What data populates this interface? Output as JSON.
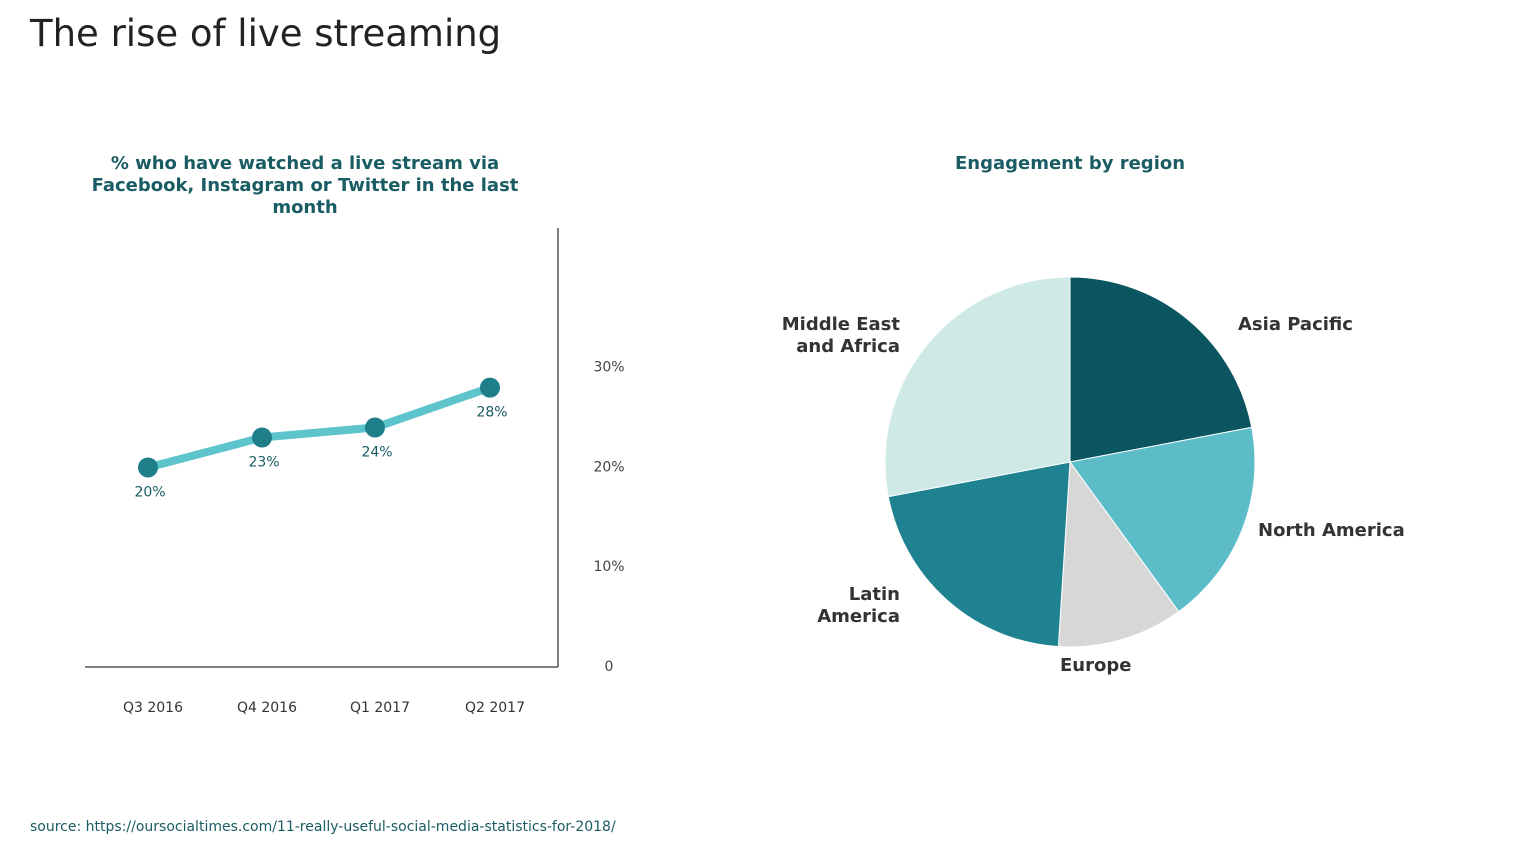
{
  "title": "The rise of live streaming",
  "source": "source: https://oursocialtimes.com/11-really-useful-social-media-statistics-for-2018/",
  "chart_data": [
    {
      "type": "line",
      "title": "% who have watched a live stream via Facebook, Instagram or Twitter in the last month",
      "categories": [
        "Q3 2016",
        "Q4 2016",
        "Q1 2017",
        "Q2 2017"
      ],
      "values": [
        20,
        23,
        24,
        28
      ],
      "value_labels": [
        "20%",
        "23%",
        "24%",
        "28%"
      ],
      "color": "#5ec4cc",
      "marker_color": "#1e7f8a",
      "ylim": [
        0,
        44
      ],
      "yticks": [
        0,
        {
          "value": 10,
          "label": "10%"
        },
        {
          "value": 20,
          "label": "20%"
        },
        {
          "value": 30,
          "label": "30%"
        }
      ],
      "grid": false
    },
    {
      "type": "pie",
      "title": "Engagement by region",
      "categories": [
        "Asia Pacific",
        "North America",
        "Europe",
        "Latin America",
        "Middle East and Africa"
      ],
      "values": [
        22,
        18,
        11,
        21,
        28
      ],
      "colors": [
        "#0b5560",
        "#5cbdc9",
        "#d8d7d8",
        "#1e8290",
        "#cfe9e6"
      ]
    }
  ]
}
